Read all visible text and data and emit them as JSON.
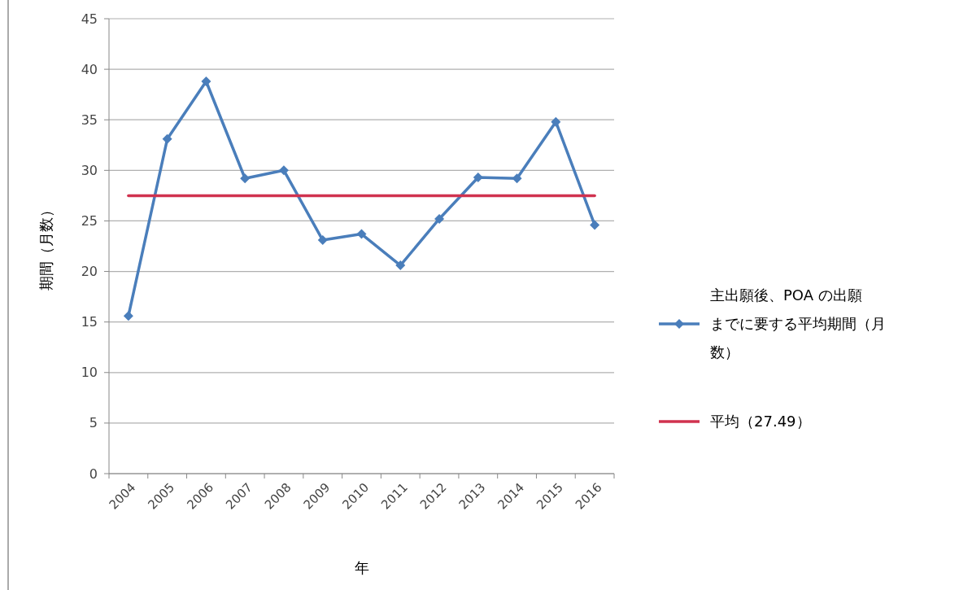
{
  "chart_data": {
    "type": "line",
    "xlabel": "年",
    "ylabel": "期間（月数）",
    "categories": [
      "2004",
      "2005",
      "2006",
      "2007",
      "2008",
      "2009",
      "2010",
      "2011",
      "2012",
      "2013",
      "2014",
      "2015",
      "2016"
    ],
    "series": [
      {
        "name": "主出願後、POA の出願までに要する平均期間（月数）",
        "color": "#4a7ebb",
        "marker": "diamond",
        "values": [
          15.6,
          33.1,
          38.8,
          29.2,
          30.0,
          23.1,
          23.7,
          20.6,
          25.2,
          29.3,
          29.2,
          34.8,
          24.6
        ]
      },
      {
        "name": "平均（27.49）",
        "color": "#d0324f",
        "marker": "none",
        "values": [
          27.49,
          27.49,
          27.49,
          27.49,
          27.49,
          27.49,
          27.49,
          27.49,
          27.49,
          27.49,
          27.49,
          27.49,
          27.49
        ]
      }
    ],
    "ylim": [
      0,
      45
    ],
    "yticks": [
      0,
      5,
      10,
      15,
      20,
      25,
      30,
      35,
      40,
      45
    ],
    "grid": "y",
    "legend": "right",
    "line_style": "solid"
  }
}
